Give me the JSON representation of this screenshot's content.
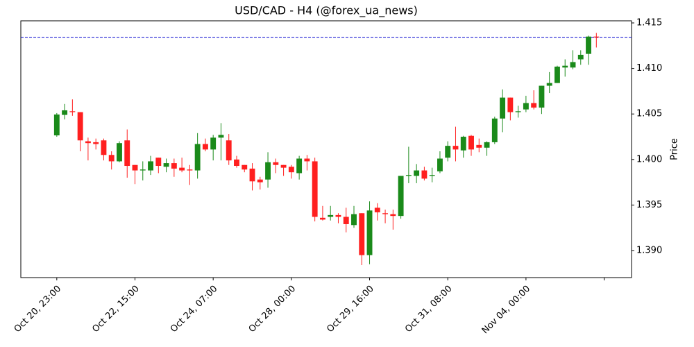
{
  "chart_data": {
    "type": "candlestick",
    "title": "USD/CAD - H4 (@forex_ua_news)",
    "ylabel": "Price",
    "y_axis_side": "right",
    "up_color": "#1a8a1a",
    "down_color": "#ff1f1f",
    "xlim": [
      -4.6,
      73.5
    ],
    "xticks": [
      {
        "value": 0,
        "label": "Oct 20, 23:00"
      },
      {
        "value": 10,
        "label": "Oct 22, 15:00"
      },
      {
        "value": 20,
        "label": "Oct 24, 07:00"
      },
      {
        "value": 30,
        "label": "Oct 28, 00:00"
      },
      {
        "value": 40,
        "label": "Oct 29, 16:00"
      },
      {
        "value": 50,
        "label": "Oct 31, 08:00"
      },
      {
        "value": 60,
        "label": "Nov 04, 00:00"
      },
      {
        "value": 70,
        "label": null
      }
    ],
    "ylim": [
      1.38703,
      1.41523
    ],
    "yticks": [
      {
        "value": 1.39,
        "label": "1.390"
      },
      1.395,
      {
        "value": 1.4,
        "label": "1.400"
      },
      1.405,
      {
        "value": 1.41,
        "label": "1.410"
      },
      1.415
    ],
    "hline": {
      "value": 1.4134,
      "color": "#0000cc",
      "dashed": true
    },
    "open": [
      1.40265,
      1.4049,
      1.4053,
      1.4052,
      1.402,
      1.4019,
      1.4021,
      1.4005,
      1.3998,
      1.4021,
      1.3994,
      1.3988,
      1.3988,
      1.4002,
      1.3992,
      1.3996,
      1.3991,
      1.3989,
      1.3988,
      1.4017,
      1.4011,
      1.4024,
      1.4021,
      1.4,
      1.3994,
      1.399,
      1.3978,
      1.3978,
      1.3997,
      1.3994,
      1.3992,
      1.3985,
      1.4001,
      1.3998,
      1.3936,
      1.3937,
      1.3939,
      1.3937,
      1.3928,
      1.3941,
      1.3895,
      1.3947,
      1.3941,
      1.394,
      1.3938,
      1.3982,
      1.3982,
      1.3988,
      1.3982,
      1.3987,
      1.4002,
      1.4015,
      1.401,
      1.4026,
      1.4016,
      1.4013,
      1.4019,
      1.4045,
      1.4068,
      1.4052,
      1.4055,
      1.4062,
      1.4057,
      1.4081,
      1.4084,
      1.4101,
      1.4101,
      1.411,
      1.4116,
      1.4135
    ],
    "high": [
      1.4051,
      1.4061,
      1.4066,
      1.4052,
      1.4024,
      1.4023,
      1.4023,
      1.4009,
      1.402,
      1.4033,
      1.3994,
      1.3998,
      1.4004,
      1.4002,
      1.4001,
      1.4001,
      1.4002,
      1.3994,
      1.4029,
      1.4023,
      1.4027,
      1.404,
      1.4028,
      1.4004,
      1.3994,
      1.3996,
      1.3981,
      1.4008,
      1.4001,
      1.3994,
      1.3994,
      1.4004,
      1.4005,
      1.4002,
      1.3949,
      1.3949,
      1.3941,
      1.3947,
      1.3949,
      1.3941,
      1.3954,
      1.3952,
      1.3945,
      1.3945,
      1.3982,
      1.4014,
      1.3995,
      1.3992,
      1.3991,
      1.4009,
      1.402,
      1.4036,
      1.4026,
      1.4027,
      1.4023,
      1.402,
      1.4047,
      1.4077,
      1.4068,
      1.4059,
      1.407,
      1.4076,
      1.4081,
      1.4096,
      1.4103,
      1.411,
      1.412,
      1.412,
      1.4136,
      1.4139
    ],
    "low": [
      1.4025,
      1.4044,
      1.4048,
      1.4009,
      1.3999,
      1.4011,
      1.3999,
      1.3989,
      1.3997,
      1.398,
      1.3973,
      1.3977,
      1.3983,
      1.3985,
      1.3986,
      1.3981,
      1.3986,
      1.3972,
      1.3979,
      1.4009,
      1.3999,
      1.3999,
      1.3994,
      1.3991,
      1.3986,
      1.3966,
      1.3967,
      1.3969,
      1.3985,
      1.3982,
      1.3979,
      1.3978,
      1.3988,
      1.3932,
      1.3933,
      1.3933,
      1.393,
      1.392,
      1.3925,
      1.3884,
      1.3885,
      1.3933,
      1.393,
      1.3923,
      1.3935,
      1.3974,
      1.3974,
      1.3977,
      1.3975,
      1.3985,
      1.3998,
      1.3998,
      1.4002,
      1.4004,
      1.4008,
      1.4004,
      1.4017,
      1.403,
      1.4043,
      1.4046,
      1.4052,
      1.4055,
      1.405,
      1.4073,
      1.4084,
      1.4091,
      1.4099,
      1.4104,
      1.4104,
      1.4123
    ],
    "close": [
      1.40494,
      1.4054,
      1.4052,
      1.4021,
      1.4018,
      1.4017,
      1.4005,
      1.3998,
      1.4018,
      1.3993,
      1.3988,
      1.3989,
      1.3998,
      1.3993,
      1.3996,
      1.399,
      1.3988,
      1.3988,
      1.4017,
      1.4011,
      1.4024,
      1.4027,
      1.3999,
      1.3993,
      1.3989,
      1.3976,
      1.3975,
      1.3997,
      1.3994,
      1.3991,
      1.3986,
      1.4001,
      1.3998,
      1.3937,
      1.3934,
      1.3939,
      1.3937,
      1.3929,
      1.394,
      1.3895,
      1.3944,
      1.3942,
      1.394,
      1.3938,
      1.3982,
      1.3983,
      1.3988,
      1.3979,
      1.3983,
      1.4001,
      1.4015,
      1.4011,
      1.4025,
      1.4011,
      1.4013,
      1.4019,
      1.4045,
      1.4068,
      1.4052,
      1.4053,
      1.4062,
      1.4057,
      1.4081,
      1.4084,
      1.4102,
      1.4103,
      1.4107,
      1.4115,
      1.4135,
      1.4134
    ]
  }
}
